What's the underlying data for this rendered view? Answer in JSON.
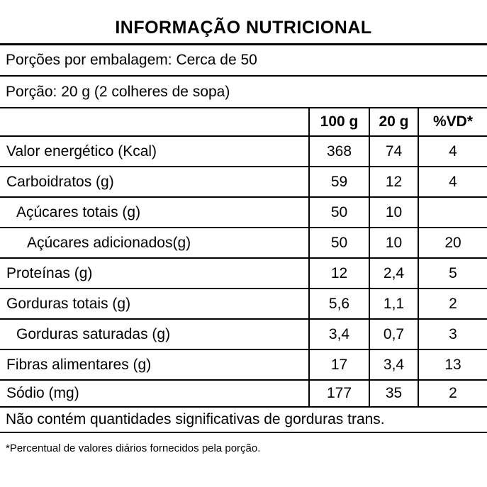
{
  "title": "INFORMAÇÃO NUTRICIONAL",
  "servings_line": "Porções por embalagem: Cerca de 50",
  "portion_line": "Porção: 20 g (2 colheres de sopa)",
  "table": {
    "columns": [
      "100 g",
      "20 g",
      "%VD*"
    ],
    "rows": [
      {
        "label": "Valor energético (Kcal)",
        "v100": "368",
        "v20": "74",
        "vd": "4"
      },
      {
        "label": "Carboidratos (g)",
        "v100": "59",
        "v20": "12",
        "vd": "4"
      },
      {
        "label": "Açúcares totais (g)",
        "v100": "50",
        "v20": "10",
        "vd": ""
      },
      {
        "label": "Açúcares adicionados(g)",
        "v100": "50",
        "v20": "10",
        "vd": "20"
      },
      {
        "label": "Proteínas (g)",
        "v100": "12",
        "v20": "2,4",
        "vd": "5"
      },
      {
        "label": "Gorduras totais (g)",
        "v100": "5,6",
        "v20": "1,1",
        "vd": "2"
      },
      {
        "label": "Gorduras saturadas (g)",
        "v100": "3,4",
        "v20": "0,7",
        "vd": "3"
      },
      {
        "label": "Fibras alimentares (g)",
        "v100": "17",
        "v20": "3,4",
        "vd": "13"
      },
      {
        "label": "Sódio (mg)",
        "v100": "177",
        "v20": "35",
        "vd": "2"
      }
    ],
    "trans_note": "Não contém quantidades significativas de gorduras trans.",
    "footnote": "*Percentual de valores diários fornecidos pela porção."
  },
  "colors": {
    "background": "#ffffff",
    "text": "#000000",
    "line": "#000000"
  }
}
